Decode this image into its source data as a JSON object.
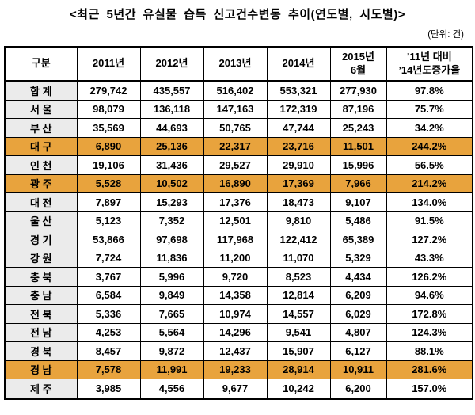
{
  "title": "<최근 5년간 유실물 습득 신고건수변동 추이(연도별, 시도별)>",
  "unit_note": "(단위: 건)",
  "table": {
    "headers": [
      "구분",
      "2011년",
      "2012년",
      "2013년",
      "2014년",
      "2015년\n6월",
      "’11년 대비\n’14년도증가율"
    ],
    "rows": [
      {
        "label": "합 계",
        "values": [
          "279,742",
          "435,557",
          "516,402",
          "553,321",
          "277,930",
          "97.8%"
        ],
        "highlighted": false
      },
      {
        "label": "서 울",
        "values": [
          "98,079",
          "136,118",
          "147,163",
          "172,319",
          "87,196",
          "75.7%"
        ],
        "highlighted": false
      },
      {
        "label": "부 산",
        "values": [
          "35,569",
          "44,693",
          "50,765",
          "47,744",
          "25,243",
          "34.2%"
        ],
        "highlighted": false
      },
      {
        "label": "대 구",
        "values": [
          "6,890",
          "25,136",
          "22,317",
          "23,716",
          "11,501",
          "244.2%"
        ],
        "highlighted": true
      },
      {
        "label": "인 천",
        "values": [
          "19,106",
          "31,436",
          "29,527",
          "29,910",
          "15,996",
          "56.5%"
        ],
        "highlighted": false
      },
      {
        "label": "광 주",
        "values": [
          "5,528",
          "10,502",
          "16,890",
          "17,369",
          "7,966",
          "214.2%"
        ],
        "highlighted": true
      },
      {
        "label": "대 전",
        "values": [
          "7,897",
          "15,293",
          "17,376",
          "18,473",
          "9,107",
          "134.0%"
        ],
        "highlighted": false
      },
      {
        "label": "울 산",
        "values": [
          "5,123",
          "7,352",
          "12,501",
          "9,810",
          "5,486",
          "91.5%"
        ],
        "highlighted": false
      },
      {
        "label": "경 기",
        "values": [
          "53,866",
          "97,698",
          "117,968",
          "122,412",
          "65,389",
          "127.2%"
        ],
        "highlighted": false
      },
      {
        "label": "강 원",
        "values": [
          "7,724",
          "11,836",
          "11,200",
          "11,070",
          "5,329",
          "43.3%"
        ],
        "highlighted": false
      },
      {
        "label": "충 북",
        "values": [
          "3,767",
          "5,996",
          "9,720",
          "8,523",
          "4,434",
          "126.2%"
        ],
        "highlighted": false
      },
      {
        "label": "충 남",
        "values": [
          "6,584",
          "9,849",
          "14,358",
          "12,814",
          "6,209",
          "94.6%"
        ],
        "highlighted": false
      },
      {
        "label": "전 북",
        "values": [
          "5,336",
          "7,665",
          "10,974",
          "14,557",
          "6,029",
          "172.8%"
        ],
        "highlighted": false
      },
      {
        "label": "전 남",
        "values": [
          "4,253",
          "5,564",
          "14,296",
          "9,541",
          "4,807",
          "124.3%"
        ],
        "highlighted": false
      },
      {
        "label": "경 북",
        "values": [
          "8,457",
          "9,872",
          "12,437",
          "15,907",
          "6,127",
          "88.1%"
        ],
        "highlighted": false
      },
      {
        "label": "경 남",
        "values": [
          "7,578",
          "11,991",
          "19,233",
          "28,914",
          "10,911",
          "281.6%"
        ],
        "highlighted": true
      },
      {
        "label": "제 주",
        "values": [
          "3,985",
          "4,556",
          "9,677",
          "10,242",
          "6,200",
          "157.0%"
        ],
        "highlighted": false
      }
    ]
  },
  "colors": {
    "highlight_row": "#e8a33d",
    "label_column": "#ebebeb",
    "border": "#000000",
    "text": "#000000"
  }
}
